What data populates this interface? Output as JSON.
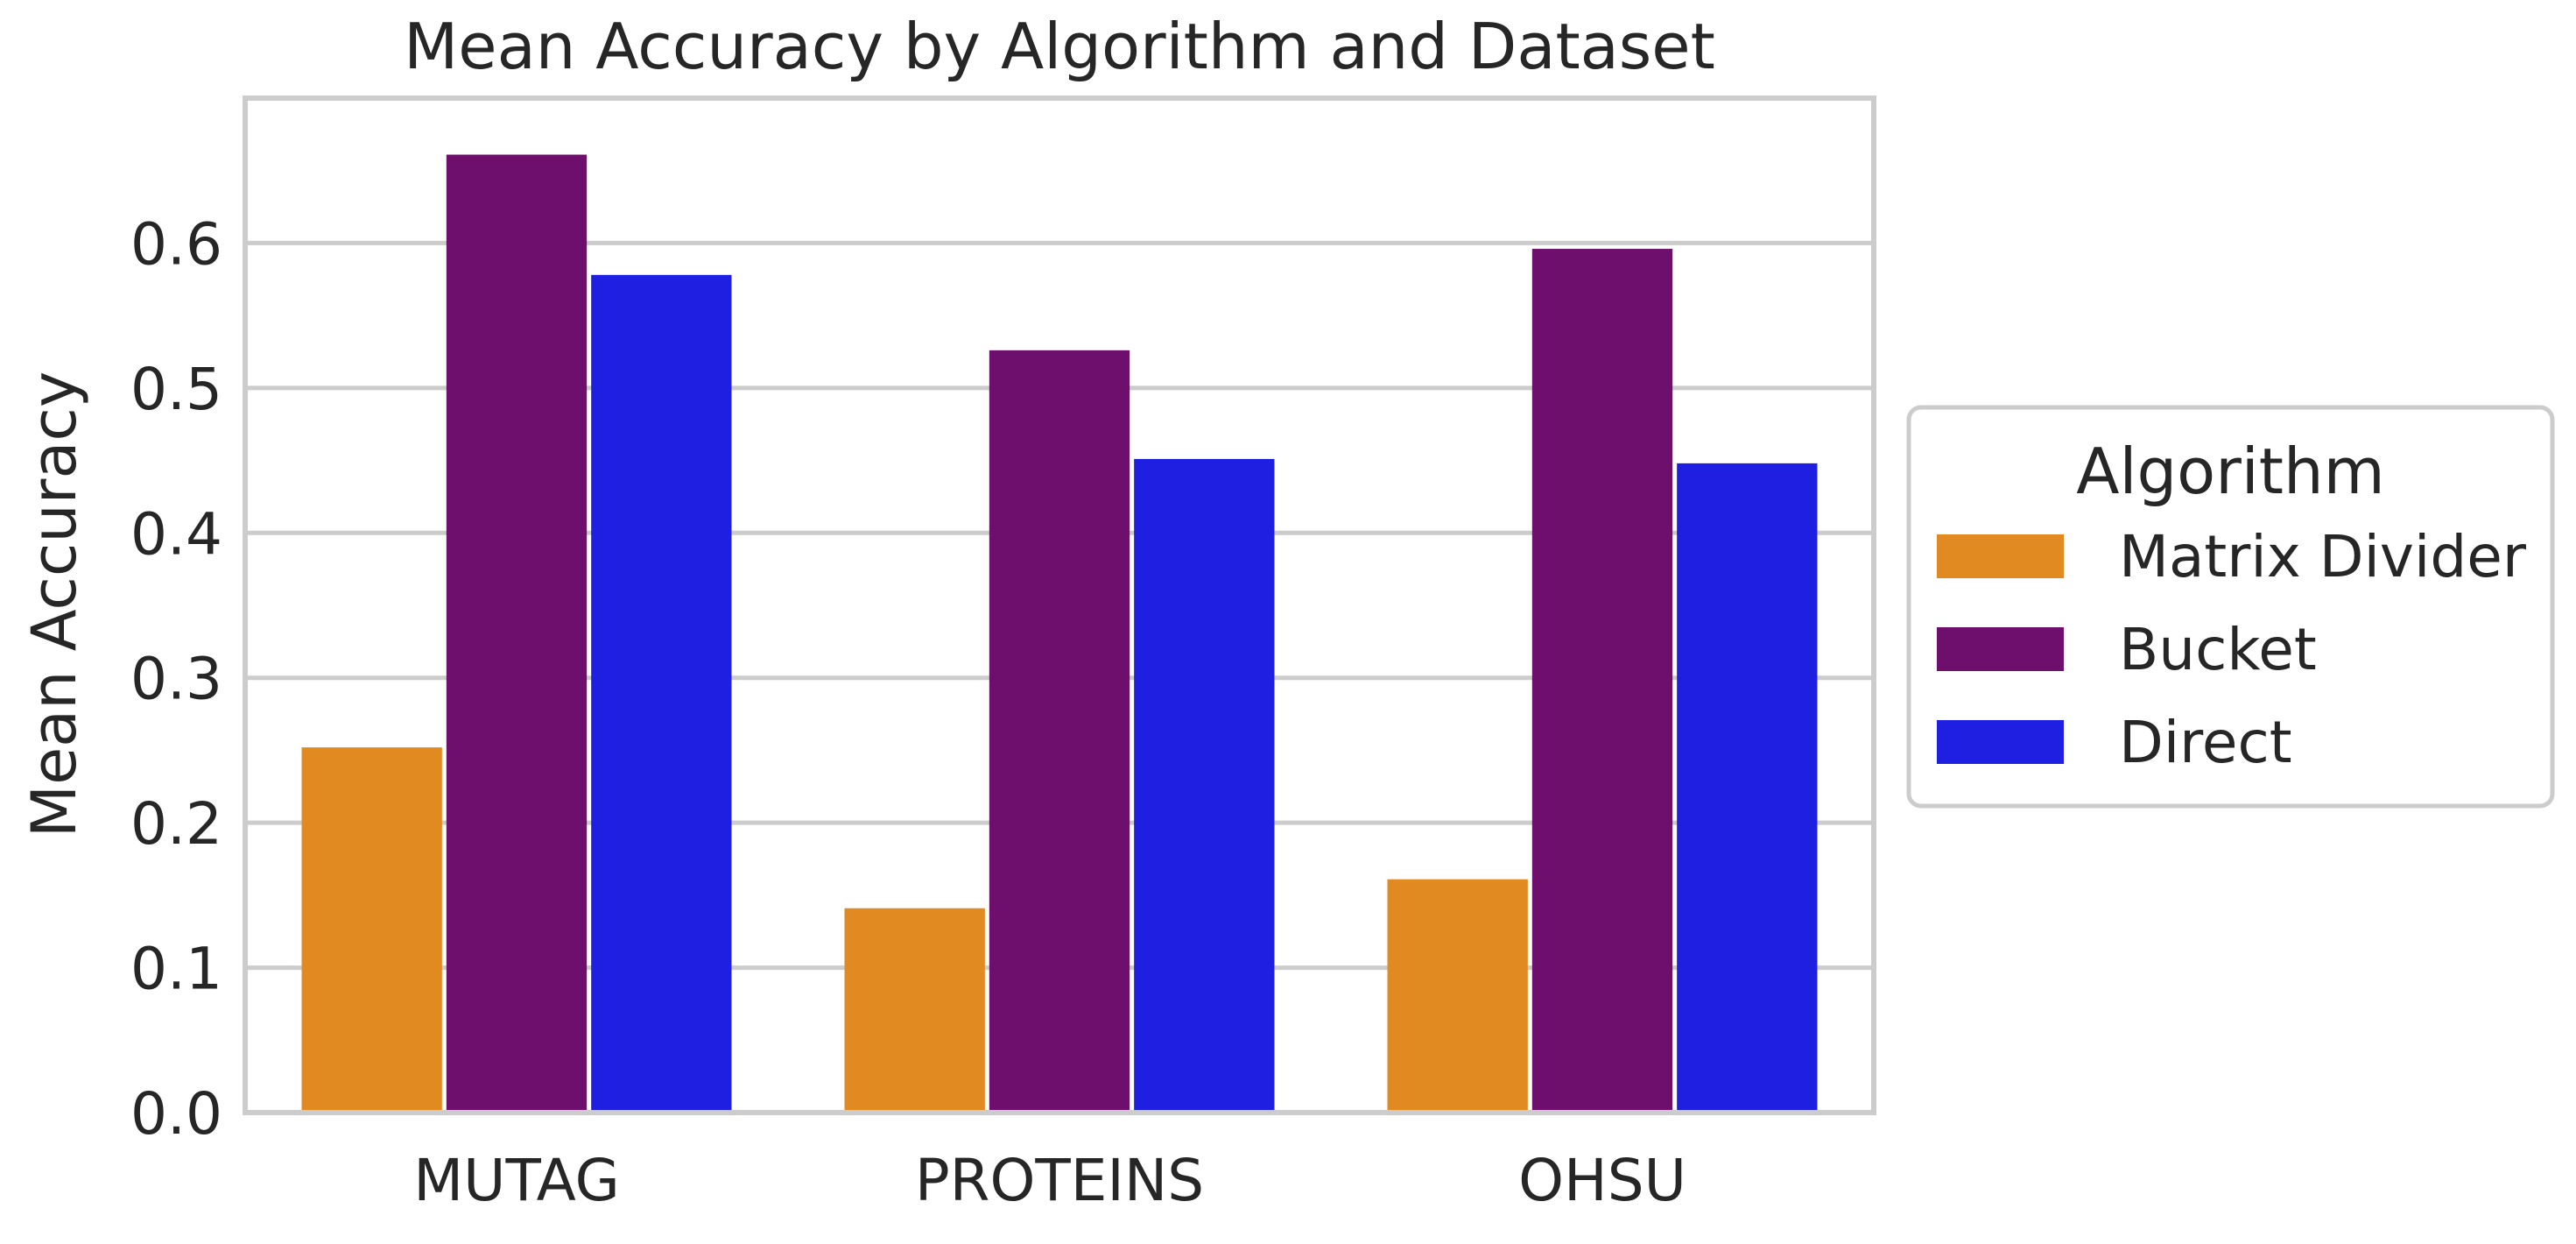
{
  "chart_data": {
    "type": "bar",
    "title": "Mean Accuracy by Algorithm and Dataset",
    "xlabel": "",
    "ylabel": "Mean Accuracy",
    "categories": [
      "MUTAG",
      "PROTEINS",
      "OHSU"
    ],
    "ylim": [
      0,
      0.7
    ],
    "yticks": [
      "0.0",
      "0.1",
      "0.2",
      "0.3",
      "0.4",
      "0.5",
      "0.6"
    ],
    "grid": true,
    "legend": {
      "title": "Algorithm",
      "placement": "right-outside"
    },
    "series": [
      {
        "name": "Matrix Divider",
        "color": "#e08a21",
        "values": [
          0.252,
          0.141,
          0.161
        ]
      },
      {
        "name": "Bucket",
        "color": "#6f0f6d",
        "values": [
          0.661,
          0.526,
          0.596
        ]
      },
      {
        "name": "Direct",
        "color": "#1e1fe0",
        "values": [
          0.578,
          0.451,
          0.448
        ]
      }
    ]
  }
}
